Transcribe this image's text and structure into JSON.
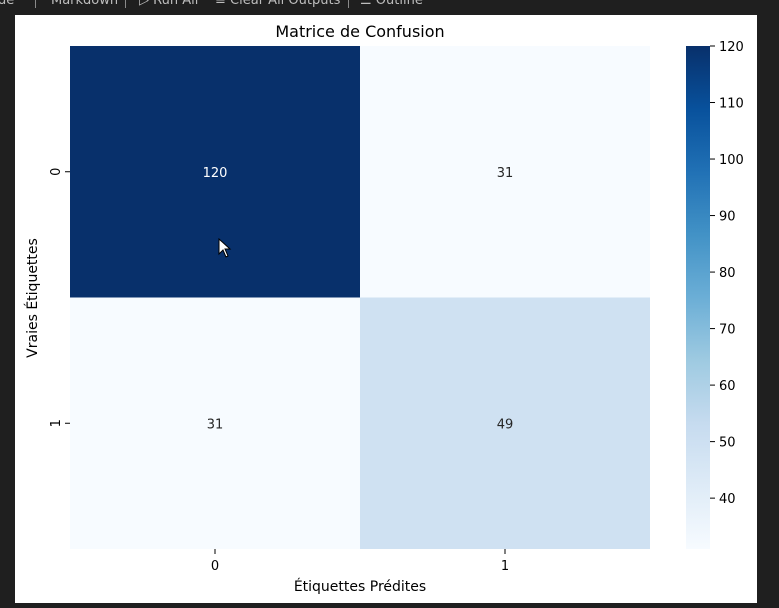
{
  "toolbar": {
    "items": [
      {
        "label": "de",
        "icon": ""
      },
      {
        "label": "Markdown",
        "icon": ""
      },
      {
        "label": "Run All",
        "icon": "run-icon"
      },
      {
        "label": "Clear All Outputs",
        "icon": "clear-icon"
      },
      {
        "label": "Outline",
        "icon": "outline-icon"
      },
      {
        "label": "···",
        "icon": "more-icon"
      }
    ]
  },
  "chart_data": {
    "type": "heatmap",
    "title": "Matrice de Confusion",
    "xlabel": "Étiquettes Prédites",
    "ylabel": "Vraies Étiquettes",
    "x_ticks": [
      "0",
      "1"
    ],
    "y_ticks": [
      "0",
      "1"
    ],
    "values": [
      [
        120,
        31
      ],
      [
        31,
        49
      ]
    ],
    "colormap": "Blues",
    "color_min": "#f7fbff",
    "color_max": "#08306b",
    "colorbar": {
      "range": [
        31,
        120
      ],
      "ticks": [
        40,
        50,
        60,
        70,
        80,
        90,
        100,
        110,
        120
      ]
    }
  }
}
